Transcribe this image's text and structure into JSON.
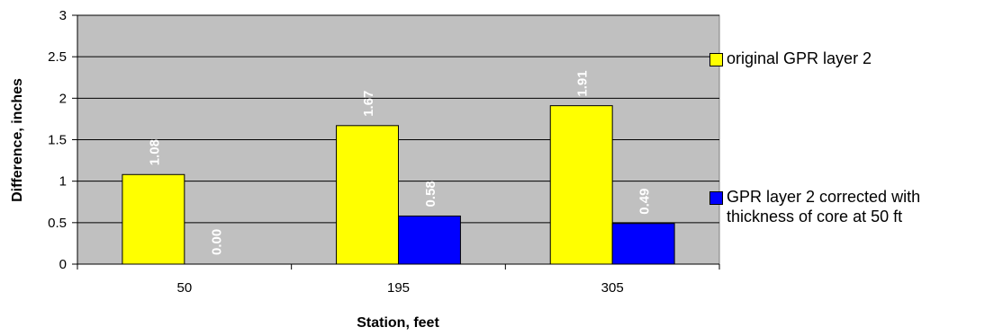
{
  "chart_data": {
    "type": "bar",
    "categories": [
      "50",
      "195",
      "305"
    ],
    "series": [
      {
        "name": "original GPR layer 2",
        "color": "#FFFF00",
        "values": [
          1.08,
          1.67,
          1.91
        ],
        "labels": [
          "1.08",
          "1.67",
          "1.91"
        ]
      },
      {
        "name": "GPR layer 2 corrected with thickness of core at 50 ft",
        "color": "#0000FF",
        "values": [
          0.0,
          0.58,
          0.49
        ],
        "labels": [
          "0.00",
          "0.58",
          "0.49"
        ]
      }
    ],
    "xlabel": "Station, feet",
    "ylabel": "Difference, inches",
    "ylim": [
      0,
      3
    ],
    "yticks": [
      "0",
      "0.5",
      "1",
      "1.5",
      "2",
      "2.5",
      "3"
    ],
    "plot_background": "#C0C0C0",
    "grid": true,
    "legend_position": "right"
  }
}
